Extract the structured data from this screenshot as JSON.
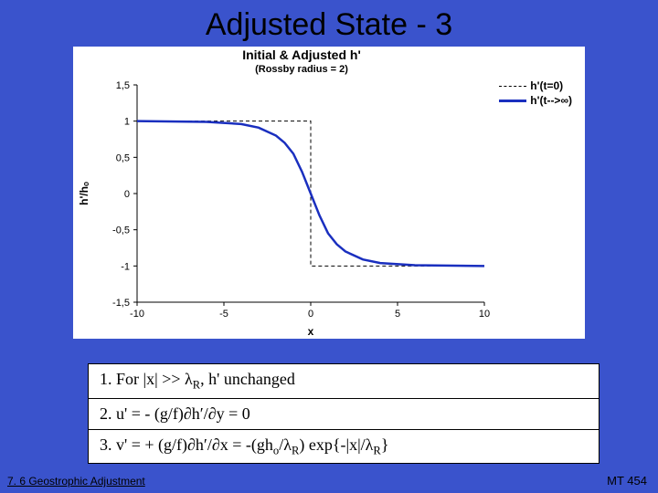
{
  "slide": {
    "title": "Adjusted State - 3",
    "footer_left": "7. 6 Geostrophic Adjustment",
    "footer_right": "MT 454"
  },
  "chart": {
    "type": "line",
    "title": "Initial & Adjusted h'",
    "subtitle": "(Rossby radius = 2)",
    "title_fontsize": 14,
    "subtitle_fontsize": 11,
    "xlabel": "x",
    "ylabel": "h'/hₒ",
    "label_fontsize": 12,
    "xlim": [
      -10,
      10
    ],
    "ylim": [
      -1.5,
      1.5
    ],
    "xticks": [
      -10,
      -5,
      0,
      5,
      10
    ],
    "yticks": [
      -1.5,
      -1,
      -0.5,
      0,
      0.5,
      1,
      1.5
    ],
    "ytick_labels": [
      "-1,5",
      "-1",
      "-0,5",
      "0",
      "0,5",
      "1",
      "1,5"
    ],
    "background_color": "#ffffff",
    "axis_color": "#000000",
    "tick_color": "#000000",
    "series": [
      {
        "name": "h'(t=0)",
        "color": "#000000",
        "style": "dashed",
        "width": 1,
        "x": [
          -10,
          0,
          0,
          10
        ],
        "y": [
          1,
          1,
          -1,
          -1
        ]
      },
      {
        "name": "h'(t→∞)",
        "color": "#1a2fbf",
        "style": "solid",
        "width": 2.5,
        "x": [
          -10,
          -6,
          -4,
          -3,
          -2,
          -1.5,
          -1,
          -0.5,
          0,
          0.5,
          1,
          1.5,
          2,
          3,
          4,
          6,
          10
        ],
        "y": [
          1,
          0.99,
          0.96,
          0.91,
          0.8,
          0.7,
          0.55,
          0.3,
          0,
          -0.3,
          -0.55,
          -0.7,
          -0.8,
          -0.91,
          -0.96,
          -0.99,
          -1
        ]
      }
    ],
    "legend": {
      "items": [
        {
          "label": "h'(t=0)",
          "color": "#000000",
          "style": "dashed",
          "width": 1
        },
        {
          "label": "h'(t-->∞)",
          "color": "#1a2fbf",
          "style": "solid",
          "width": 3
        }
      ]
    }
  },
  "equations": {
    "row1": "1.  For |x| >> λ",
    "row1_sub": "R",
    "row1_tail": ", h' unchanged",
    "row2": "2.  u' = - (g/f)∂h′/∂y = 0",
    "row3_pre": "3.  v' = + (g/f)∂h′/∂x = -(gh",
    "row3_sub1": "o",
    "row3_mid": "/λ",
    "row3_sub2": "R",
    "row3_mid2": ") exp{-|x|/λ",
    "row3_sub3": "R",
    "row3_end": "}"
  }
}
